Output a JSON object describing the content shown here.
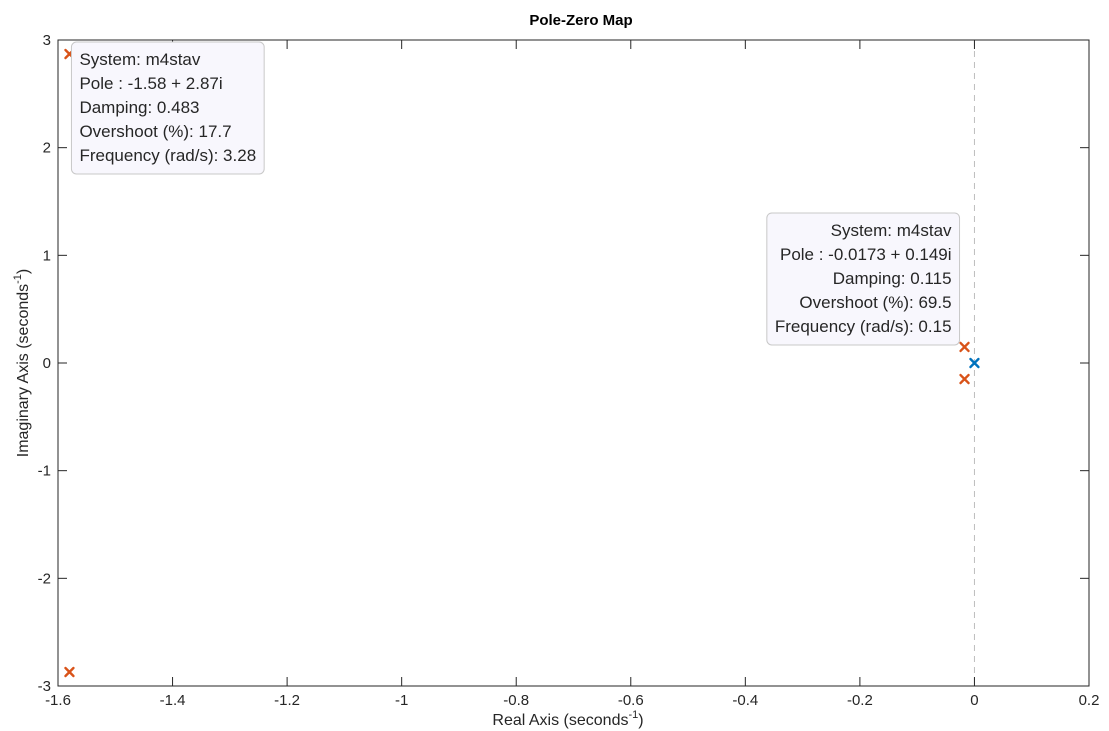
{
  "chart_data": {
    "type": "scatter",
    "title": "Pole-Zero Map",
    "xlabel": "Real Axis (seconds",
    "ylabel": "Imaginary Axis (seconds",
    "axis_unit_exponent": "-1",
    "xlim": [
      -1.6,
      0.2
    ],
    "ylim": [
      -3,
      3
    ],
    "x_ticks": [
      -1.6,
      -1.4,
      -1.2,
      -1,
      -0.8,
      -0.6,
      -0.4,
      -0.2,
      0,
      0.2
    ],
    "x_tick_labels": [
      "-1.6",
      "-1.4",
      "-1.2",
      "-1",
      "-0.8",
      "-0.6",
      "-0.4",
      "-0.2",
      "0",
      "0.2"
    ],
    "y_ticks": [
      -3,
      -2,
      -1,
      0,
      1,
      2,
      3
    ],
    "y_tick_labels": [
      "-3",
      "-2",
      "-1",
      "0",
      "1",
      "2",
      "3"
    ],
    "grid": false,
    "series": [
      {
        "marker": "x",
        "color": "#D95319",
        "points": [
          {
            "x": -1.58,
            "y": 2.87
          },
          {
            "x": -1.58,
            "y": -2.87
          },
          {
            "x": -0.0173,
            "y": 0.149
          },
          {
            "x": -0.0173,
            "y": -0.149
          }
        ]
      },
      {
        "marker": "x",
        "color": "#0072BD",
        "points": [
          {
            "x": 0,
            "y": 0
          }
        ]
      }
    ],
    "datatips": [
      {
        "target": {
          "x": -1.58,
          "y": 2.87
        },
        "align": "left",
        "lines": [
          "System: m4stav",
          "Pole : -1.58 + 2.87i",
          "Damping: 0.483",
          "Overshoot (%): 17.7",
          "Frequency (rad/s): 3.28"
        ]
      },
      {
        "target": {
          "x": -0.0173,
          "y": 0.149
        },
        "align": "right",
        "lines": [
          "System: m4stav",
          "Pole : -0.0173 + 0.149i",
          "Damping: 0.115",
          "Overshoot (%): 69.5",
          "Frequency (rad/s): 0.15"
        ]
      }
    ]
  }
}
